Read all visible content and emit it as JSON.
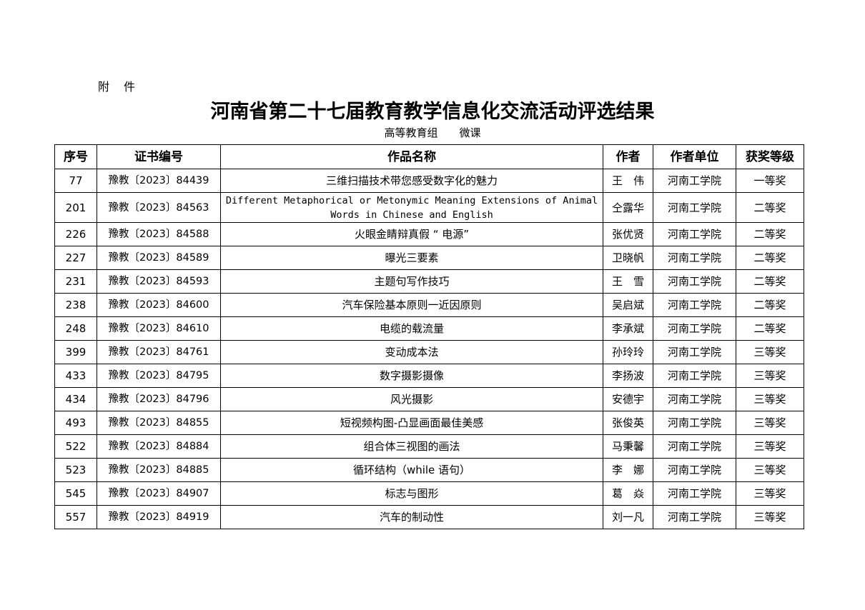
{
  "attachment_label": "附　件",
  "title": "河南省第二十七届教育教学信息化交流活动评选结果",
  "subtitle": "高等教育组　　微课",
  "table": {
    "headers": [
      "序号",
      "证书编号",
      "作品名称",
      "作者",
      "作者单位",
      "获奖等级"
    ],
    "rows": [
      [
        "77",
        "豫教〔2023〕84439",
        "三维扫描技术带您感受数字化的魅力",
        "王　伟",
        "河南工学院",
        "一等奖"
      ],
      [
        "201",
        "豫教〔2023〕84563",
        "Different Metaphorical or Metonymic Meaning Extensions of Animal Words in Chinese and English",
        "仝露华",
        "河南工学院",
        "二等奖"
      ],
      [
        "226",
        "豫教〔2023〕84588",
        "火眼金睛辩真假 “ 电源”",
        "张优贤",
        "河南工学院",
        "二等奖"
      ],
      [
        "227",
        "豫教〔2023〕84589",
        "曝光三要素",
        "卫晓帆",
        "河南工学院",
        "二等奖"
      ],
      [
        "231",
        "豫教〔2023〕84593",
        "主题句写作技巧",
        "王　雪",
        "河南工学院",
        "二等奖"
      ],
      [
        "238",
        "豫教〔2023〕84600",
        "汽车保险基本原则一近因原则",
        "吴启斌",
        "河南工学院",
        "二等奖"
      ],
      [
        "248",
        "豫教〔2023〕84610",
        "电缆的载流量",
        "李承斌",
        "河南工学院",
        "二等奖"
      ],
      [
        "399",
        "豫教〔2023〕84761",
        "变动成本法",
        "孙玲玲",
        "河南工学院",
        "三等奖"
      ],
      [
        "433",
        "豫教〔2023〕84795",
        "数字摄影摄像",
        "李扬波",
        "河南工学院",
        "三等奖"
      ],
      [
        "434",
        "豫教〔2023〕84796",
        "风光摄影",
        "安德宇",
        "河南工学院",
        "三等奖"
      ],
      [
        "493",
        "豫教〔2023〕84855",
        "短视频构图-凸显画面最佳美感",
        "张俊英",
        "河南工学院",
        "三等奖"
      ],
      [
        "522",
        "豫教〔2023〕84884",
        "组合体三视图的画法",
        "马秉馨",
        "河南工学院",
        "三等奖"
      ],
      [
        "523",
        "豫教〔2023〕84885",
        "循环结构（while 语句）",
        "李　娜",
        "河南工学院",
        "三等奖"
      ],
      [
        "545",
        "豫教〔2023〕84907",
        "标志与图形",
        "葛　焱",
        "河南工学院",
        "三等奖"
      ],
      [
        "557",
        "豫教〔2023〕84919",
        "汽车的制动性",
        "刘一凡",
        "河南工学院",
        "三等奖"
      ]
    ]
  }
}
